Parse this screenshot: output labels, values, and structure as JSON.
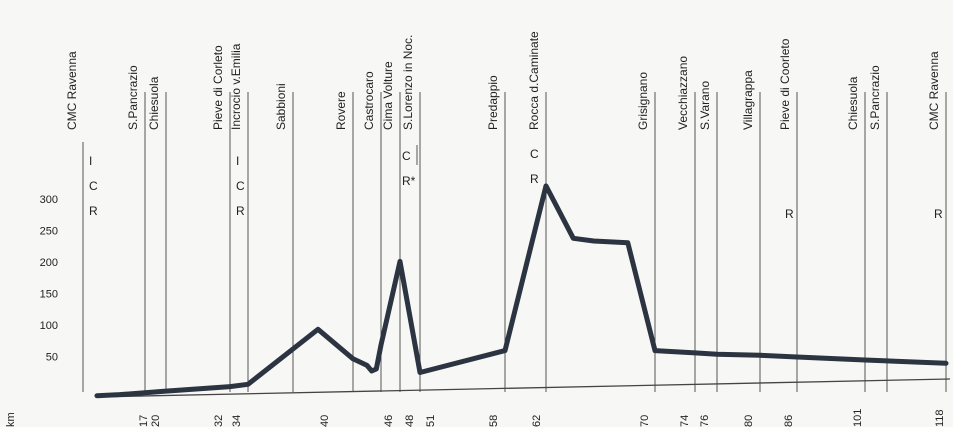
{
  "chart_data": {
    "type": "line",
    "title": "",
    "xlabel": "km",
    "ylabel": "",
    "y_ticks": [
      50,
      100,
      150,
      200,
      250,
      300
    ],
    "ylim": [
      0,
      340
    ],
    "grid": false,
    "legend": "none",
    "line_color": "#2b3440",
    "towns": [
      {
        "name": "CMC Ravenna",
        "km": "",
        "markers": [
          "I",
          "C",
          "R"
        ]
      },
      {
        "name": "S.Pancrazio",
        "km": "17",
        "markers": []
      },
      {
        "name": "Chiesuola",
        "km": "20",
        "markers": []
      },
      {
        "name": "Pieve di Corleto",
        "km": "32",
        "markers": [
          "I",
          "C",
          "R"
        ]
      },
      {
        "name": "Incrocio v.Emilia",
        "km": "34",
        "markers": []
      },
      {
        "name": "Sabbioni",
        "km": "",
        "markers": []
      },
      {
        "name": "Rovere",
        "km": "40",
        "markers": []
      },
      {
        "name": "Castrocaro",
        "km": "46",
        "markers": []
      },
      {
        "name": "Cima Volture",
        "km": "48",
        "markers": [
          "C",
          "R*"
        ]
      },
      {
        "name": "S.Lorenzo in Noc.",
        "km": "51",
        "markers": []
      },
      {
        "name": "Predappio",
        "km": "58",
        "markers": []
      },
      {
        "name": "Rocca d.Caminate",
        "km": "62",
        "markers": [
          "C",
          "R"
        ]
      },
      {
        "name": "Grisignano",
        "km": "70",
        "markers": []
      },
      {
        "name": "Vecchiazzano",
        "km": "74",
        "markers": []
      },
      {
        "name": "S.Varano",
        "km": "76",
        "markers": []
      },
      {
        "name": "Villagrappa",
        "km": "80",
        "markers": []
      },
      {
        "name": "Pieve di Coorleto",
        "km": "86",
        "markers": [
          "R"
        ]
      },
      {
        "name": "Chiesuola",
        "km": "101",
        "markers": []
      },
      {
        "name": "S.Pancrazio",
        "km": "",
        "markers": []
      },
      {
        "name": "CMC Ravenna",
        "km": "118",
        "markers": [
          "R"
        ]
      }
    ],
    "profile": {
      "x_km": [
        0,
        8,
        17,
        20,
        32,
        34,
        38,
        40,
        43,
        44,
        45,
        46,
        48,
        51,
        58,
        62,
        64,
        65.5,
        68,
        70,
        74,
        76,
        80,
        86,
        101,
        118
      ],
      "elevation": [
        2,
        3,
        5,
        7,
        12,
        15,
        100,
        52,
        41,
        32,
        35,
        73,
        205,
        28,
        60,
        320,
        236,
        231,
        227,
        55,
        50,
        47,
        44,
        40,
        33,
        25
      ]
    }
  }
}
